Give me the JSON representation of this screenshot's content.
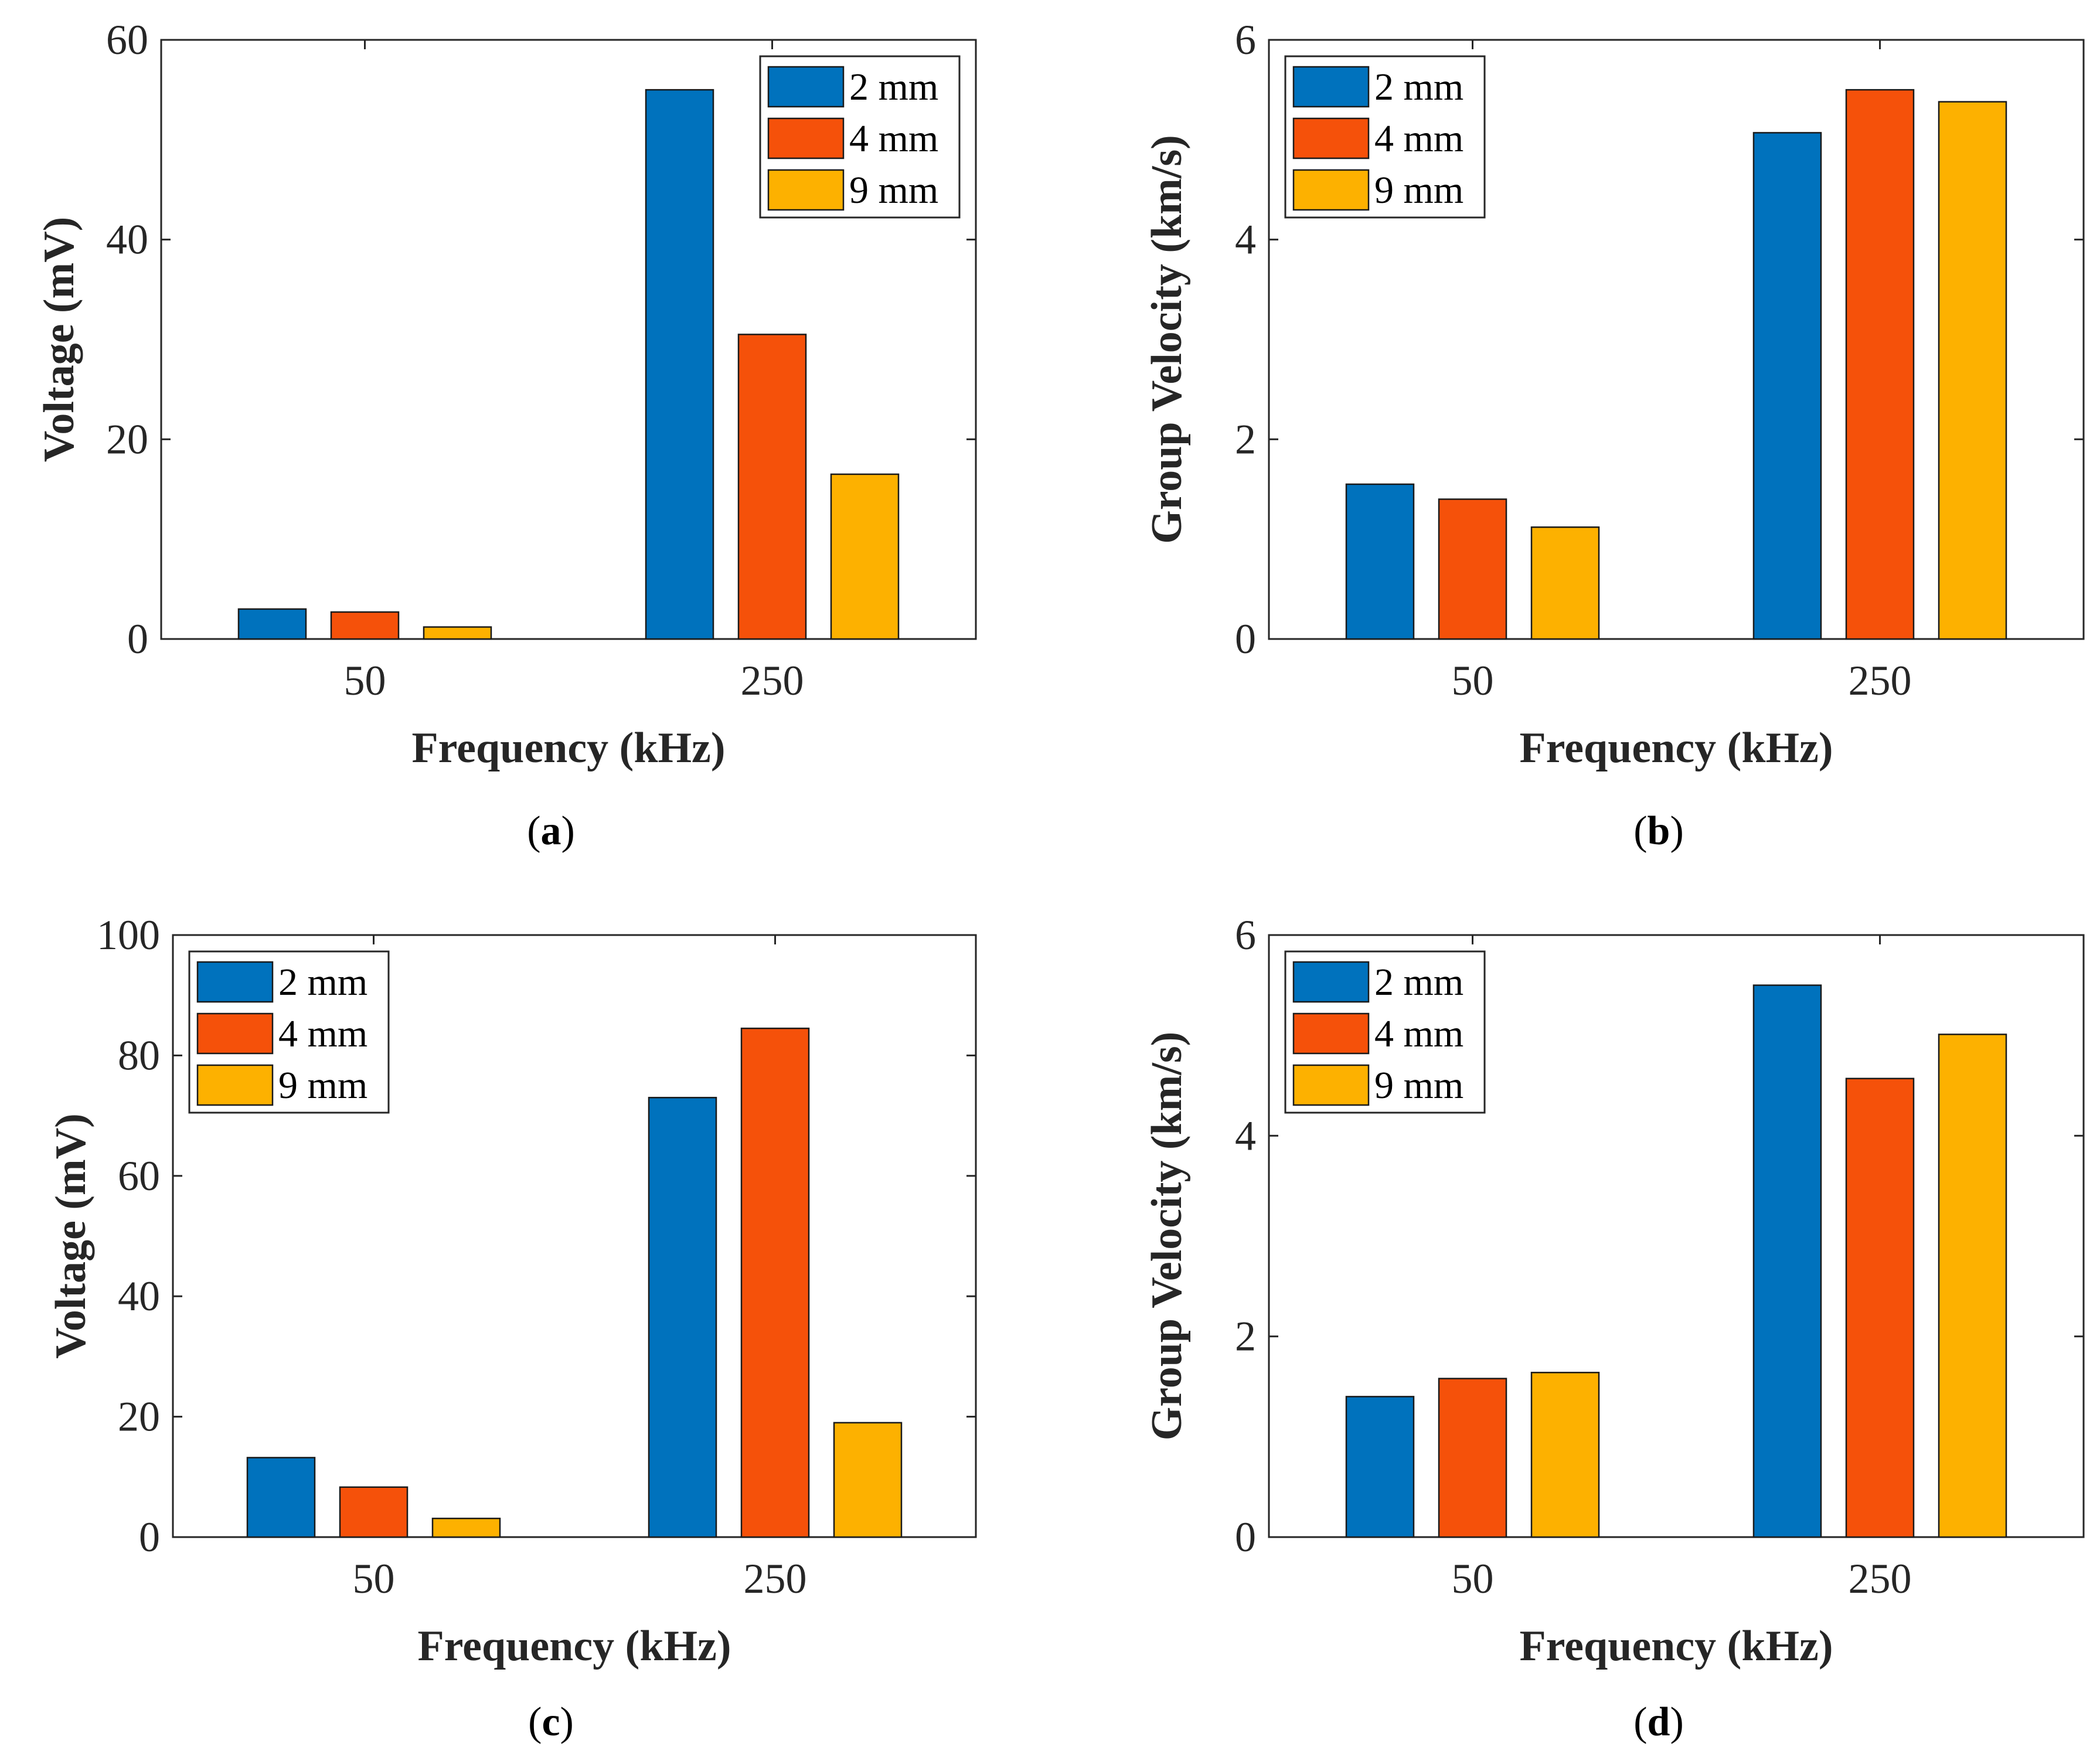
{
  "chart_data": [
    {
      "panel": "a",
      "type": "bar",
      "categories": [
        "50",
        "250"
      ],
      "series": [
        {
          "name": "2 mm",
          "values": [
            3,
            55
          ]
        },
        {
          "name": "4 mm",
          "values": [
            2.7,
            30.5
          ]
        },
        {
          "name": "9 mm",
          "values": [
            1.2,
            16.5
          ]
        }
      ],
      "xlabel": "Frequency (kHz)",
      "ylabel": "Voltage (mV)",
      "ylim": [
        0,
        60
      ],
      "yticks": [
        0,
        20,
        40,
        60
      ],
      "legend": "top-right",
      "grid": false
    },
    {
      "panel": "b",
      "type": "bar",
      "categories": [
        "50",
        "250"
      ],
      "series": [
        {
          "name": "2 mm",
          "values": [
            1.55,
            5.07
          ]
        },
        {
          "name": "4 mm",
          "values": [
            1.4,
            5.5
          ]
        },
        {
          "name": "9 mm",
          "values": [
            1.12,
            5.38
          ]
        }
      ],
      "xlabel": "Frequency (kHz)",
      "ylabel": "Group Velocity (km/s)",
      "ylim": [
        0,
        6
      ],
      "yticks": [
        0,
        2,
        4,
        6
      ],
      "legend": "top-left",
      "grid": false
    },
    {
      "panel": "c",
      "type": "bar",
      "categories": [
        "50",
        "250"
      ],
      "series": [
        {
          "name": "2 mm",
          "values": [
            13.2,
            73
          ]
        },
        {
          "name": "4 mm",
          "values": [
            8.3,
            84.5
          ]
        },
        {
          "name": "9 mm",
          "values": [
            3.1,
            19
          ]
        }
      ],
      "xlabel": "Frequency (kHz)",
      "ylabel": "Voltage (mV)",
      "ylim": [
        0,
        100
      ],
      "yticks": [
        0,
        20,
        40,
        60,
        80,
        100
      ],
      "legend": "top-left",
      "grid": false
    },
    {
      "panel": "d",
      "type": "bar",
      "categories": [
        "50",
        "250"
      ],
      "series": [
        {
          "name": "2 mm",
          "values": [
            1.4,
            5.5
          ]
        },
        {
          "name": "4 mm",
          "values": [
            1.58,
            4.57
          ]
        },
        {
          "name": "9 mm",
          "values": [
            1.64,
            5.01
          ]
        }
      ],
      "xlabel": "Frequency (kHz)",
      "ylabel": "Group Velocity (km/s)",
      "ylim": [
        0,
        6
      ],
      "yticks": [
        0,
        2,
        4,
        6
      ],
      "legend": "top-left",
      "grid": false
    }
  ],
  "colors": {
    "series": [
      "#0072BD",
      "#F5510A",
      "#FDB100"
    ],
    "axis": "#262626"
  },
  "panel_labels": [
    {
      "open": "(",
      "letter": "a",
      "close": ")"
    },
    {
      "open": "(",
      "letter": "b",
      "close": ")"
    },
    {
      "open": "(",
      "letter": "c",
      "close": ")"
    },
    {
      "open": "(",
      "letter": "d",
      "close": ")"
    }
  ]
}
